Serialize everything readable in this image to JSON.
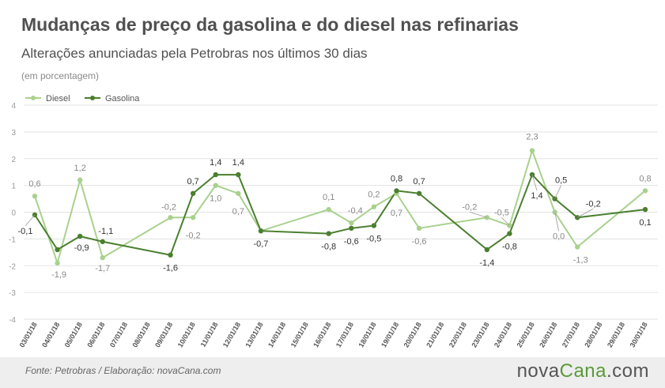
{
  "header": {
    "title": "Mudanças de preço da gasolina e do diesel nas refinarias",
    "subtitle": "Alterações anunciadas pela Petrobras nos últimos 30 dias",
    "unit": "(em porcentagem)"
  },
  "footer": {
    "source": "Fonte:  Petrobras  / Elaboração:  novaCana.com",
    "logo_part1": "nova",
    "logo_part2": "Cana",
    "logo_part3": ".com"
  },
  "chart_data": {
    "type": "line",
    "title": "Mudanças de preço da gasolina e do diesel nas refinarias",
    "subtitle": "Alterações anunciadas pela Petrobras nos últimos 30 dias",
    "ylabel": "(em porcentagem)",
    "ylim": [
      -4,
      4
    ],
    "yticks": [
      "4",
      "3",
      "2",
      "1",
      "0",
      "-1",
      "-2",
      "-3",
      "-4"
    ],
    "grid": true,
    "legend": "top-left",
    "categories": [
      "03/01/18",
      "04/01/18",
      "05/01/18",
      "06/01/18",
      "07/01/18",
      "08/01/18",
      "09/01/18",
      "10/01/18",
      "11/01/18",
      "12/01/18",
      "13/01/18",
      "14/01/18",
      "15/01/18",
      "16/01/18",
      "17/01/18",
      "18/01/18",
      "19/01/18",
      "20/01/18",
      "21/01/18",
      "22/01/18",
      "23/01/18",
      "24/01/18",
      "25/01/18",
      "26/01/18",
      "27/01/18",
      "28/01/18",
      "29/01/18",
      "30/01/18"
    ],
    "series": [
      {
        "name": "Diesel",
        "color": "#a9d18e",
        "points": [
          {
            "i": 0,
            "y": 0.6,
            "label": "0,6"
          },
          {
            "i": 1,
            "y": -1.9,
            "label": "-1,9"
          },
          {
            "i": 2,
            "y": 1.2,
            "label": "1,2"
          },
          {
            "i": 3,
            "y": -1.7,
            "label": "-1,7"
          },
          {
            "i": 6,
            "y": -0.2,
            "label": "-0,2"
          },
          {
            "i": 7,
            "y": -0.2,
            "label": "-0,2"
          },
          {
            "i": 8,
            "y": 1.0,
            "label": "1,0"
          },
          {
            "i": 9,
            "y": 0.7,
            "label": "0,7"
          },
          {
            "i": 10,
            "y": -0.7,
            "label": ""
          },
          {
            "i": 13,
            "y": 0.1,
            "label": "0,1"
          },
          {
            "i": 14,
            "y": -0.4,
            "label": "-0,4"
          },
          {
            "i": 15,
            "y": 0.2,
            "label": "0,2"
          },
          {
            "i": 16,
            "y": 0.7,
            "label": "0,7"
          },
          {
            "i": 17,
            "y": -0.6,
            "label": "-0,6"
          },
          {
            "i": 20,
            "y": -0.2,
            "label": "-0,2"
          },
          {
            "i": 21,
            "y": -0.5,
            "label": "-0,5"
          },
          {
            "i": 22,
            "y": 2.3,
            "label": "2,3"
          },
          {
            "i": 23,
            "y": 0.0,
            "label": "0,0"
          },
          {
            "i": 24,
            "y": -1.3,
            "label": "-1,3"
          },
          {
            "i": 27,
            "y": 0.8,
            "label": "0,8"
          }
        ]
      },
      {
        "name": "Gasolina",
        "color": "#4a7f2e",
        "points": [
          {
            "i": 0,
            "y": -0.1,
            "label": "-0,1"
          },
          {
            "i": 1,
            "y": -1.4,
            "label": ""
          },
          {
            "i": 2,
            "y": -0.9,
            "label": "-0,9"
          },
          {
            "i": 3,
            "y": -1.1,
            "label": "-1,1"
          },
          {
            "i": 6,
            "y": -1.6,
            "label": "-1,6"
          },
          {
            "i": 7,
            "y": 0.7,
            "label": "0,7"
          },
          {
            "i": 8,
            "y": 1.4,
            "label": "1,4"
          },
          {
            "i": 9,
            "y": 1.4,
            "label": "1,4"
          },
          {
            "i": 10,
            "y": -0.7,
            "label": "-0,7"
          },
          {
            "i": 13,
            "y": -0.8,
            "label": "-0,8"
          },
          {
            "i": 14,
            "y": -0.6,
            "label": "-0,6"
          },
          {
            "i": 15,
            "y": -0.5,
            "label": "-0,5"
          },
          {
            "i": 16,
            "y": 0.8,
            "label": "0,8"
          },
          {
            "i": 17,
            "y": 0.7,
            "label": "0,7"
          },
          {
            "i": 20,
            "y": -1.4,
            "label": "-1,4"
          },
          {
            "i": 21,
            "y": -0.8,
            "label": "-0,8"
          },
          {
            "i": 22,
            "y": 1.4,
            "label": "1,4"
          },
          {
            "i": 23,
            "y": 0.5,
            "label": "0,5"
          },
          {
            "i": 24,
            "y": -0.2,
            "label": "-0,2"
          },
          {
            "i": 27,
            "y": 0.1,
            "label": "0,1"
          }
        ]
      }
    ]
  }
}
